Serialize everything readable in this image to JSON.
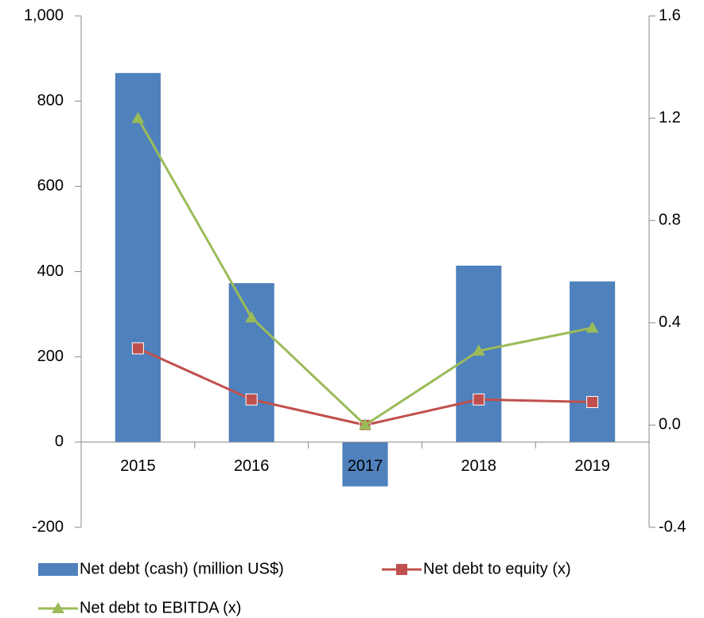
{
  "chart_data": {
    "type": "bar-line",
    "categories": [
      "2015",
      "2016",
      "2017",
      "2018",
      "2019"
    ],
    "series": [
      {
        "name": "Net debt (cash) (million US$)",
        "type": "bar",
        "color": "#4f81bd",
        "values": [
          866,
          373,
          -104,
          414,
          377
        ]
      },
      {
        "name": "Net debt to equity (x)",
        "type": "line",
        "marker": "square",
        "axis": "y2",
        "color": "#c0504d",
        "values": [
          0.3,
          0.1,
          0.0,
          0.1,
          0.09
        ]
      },
      {
        "name": "Net debt to EBITDA (x)",
        "type": "line",
        "marker": "triangle",
        "axis": "y2",
        "color": "#9bbb59",
        "values": [
          1.2,
          0.42,
          0.0,
          0.29,
          0.38
        ]
      }
    ],
    "ylim": [
      -200,
      1000
    ],
    "yticks": [
      -200,
      0,
      200,
      400,
      600,
      800,
      {
        "value": 1000,
        "label": "1,000"
      }
    ],
    "y2lim": [
      -0.4,
      1.6
    ],
    "y2ticks": [
      -0.4,
      {
        "value": 0,
        "label": "0.0"
      },
      0.4,
      0.8,
      1.2,
      1.6
    ],
    "grid": false,
    "legend": "bottom"
  }
}
